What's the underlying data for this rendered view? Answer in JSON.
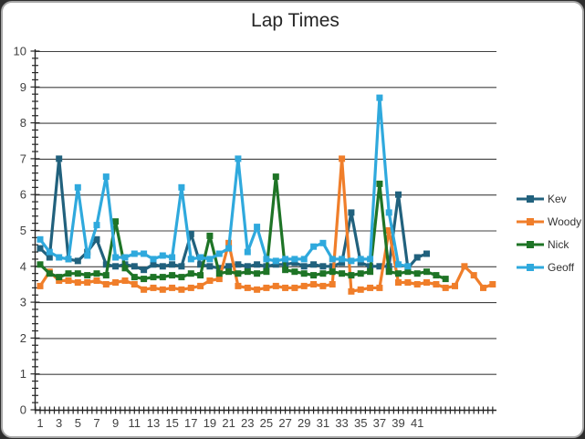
{
  "window": {
    "title": "Lap Times"
  },
  "chart_data": {
    "type": "line",
    "title": "Lap Times",
    "xlabel": "",
    "ylabel": "",
    "ylim": [
      0,
      10
    ],
    "y_major_step": 1,
    "y_minor_step": 0.2,
    "x_minor_step": 0.5,
    "grid": "horizontal-major-gridlines",
    "legend_position": "right",
    "legend_entries": [
      "Kev",
      "Woody",
      "Nick",
      "Geoff"
    ],
    "y_tick_labels": [
      "0",
      "1",
      "2",
      "3",
      "4",
      "5",
      "6",
      "7",
      "8",
      "9",
      "10"
    ],
    "x_tick_labels": [
      "1",
      "3",
      "5",
      "7",
      "9",
      "11",
      "13",
      "15",
      "17",
      "19",
      "21",
      "23",
      "25",
      "27",
      "29",
      "31",
      "33",
      "35",
      "37",
      "39",
      "41"
    ],
    "colors": {
      "kev": "#21617d",
      "woody": "#f07e2a",
      "nick": "#1e7426",
      "geoff": "#2fa9dd"
    },
    "series": [
      {
        "name": "Kev",
        "color": "#21617d",
        "values": [
          4.5,
          4.25,
          7,
          4.2,
          4.15,
          4.4,
          4.75,
          4.05,
          4,
          4.05,
          4,
          3.9,
          4.05,
          4,
          4.05,
          4,
          4.9,
          4.05,
          4,
          3.95,
          4,
          4.05,
          4,
          4.05,
          4,
          4.05,
          4.05,
          4.1,
          4,
          4.05,
          4,
          4,
          4.1,
          5.5,
          4.1,
          4,
          4,
          4,
          6,
          3.95,
          4.25,
          4.35
        ]
      },
      {
        "name": "Woody",
        "color": "#f07e2a",
        "values": [
          3.45,
          3.85,
          3.6,
          3.6,
          3.55,
          3.55,
          3.6,
          3.5,
          3.55,
          3.6,
          3.5,
          3.35,
          3.4,
          3.35,
          3.4,
          3.35,
          3.4,
          3.45,
          3.6,
          3.65,
          4.65,
          3.45,
          3.4,
          3.35,
          3.4,
          3.45,
          3.4,
          3.4,
          3.45,
          3.5,
          3.45,
          3.5,
          7,
          3.3,
          3.35,
          3.4,
          3.4,
          5,
          3.55,
          3.55,
          3.5,
          3.55,
          3.5,
          3.4,
          3.45,
          4,
          3.75,
          3.4,
          3.5
        ]
      },
      {
        "name": "Nick",
        "color": "#1e7426",
        "values": [
          4.05,
          3.8,
          3.7,
          3.8,
          3.8,
          3.75,
          3.8,
          3.75,
          5.25,
          3.95,
          3.7,
          3.65,
          3.7,
          3.7,
          3.75,
          3.7,
          3.8,
          3.75,
          4.85,
          3.8,
          3.85,
          3.8,
          3.85,
          3.8,
          3.85,
          6.5,
          3.9,
          3.85,
          3.8,
          3.75,
          3.8,
          3.85,
          3.8,
          3.75,
          3.8,
          3.85,
          6.3,
          3.85,
          3.8,
          3.85,
          3.8,
          3.85,
          3.75,
          3.65
        ]
      },
      {
        "name": "Geoff",
        "color": "#2fa9dd",
        "values": [
          4.75,
          4.4,
          4.25,
          4.2,
          6.2,
          4.3,
          5.15,
          6.5,
          4.25,
          4.25,
          4.35,
          4.35,
          4.2,
          4.3,
          4.25,
          6.2,
          4.2,
          4.25,
          4.2,
          4.35,
          4.5,
          7,
          4.4,
          5.1,
          4.2,
          4.15,
          4.2,
          4.2,
          4.2,
          4.55,
          4.65,
          4.2,
          4.2,
          4.15,
          4.2,
          4.2,
          8.7,
          5.5,
          4.05,
          4
        ]
      }
    ]
  }
}
